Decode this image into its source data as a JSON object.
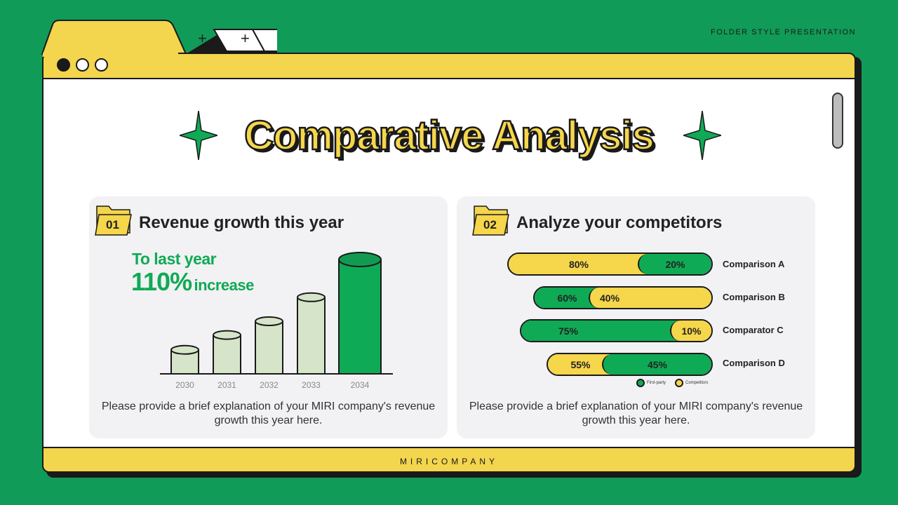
{
  "header_label": "FOLDER STYLE PRESENTATION",
  "tabs": [
    {
      "icon": "plus-icon",
      "label": "+"
    },
    {
      "icon": "plus-icon",
      "label": "+"
    }
  ],
  "window_controls": [
    "close",
    "minimize",
    "maximize"
  ],
  "title": "Comparative Analysis",
  "footer": "MIRICOMPANY",
  "colors": {
    "background": "#119b58",
    "yellow": "#f3d54e",
    "green": "#0faa55",
    "card": "#f2f1f3"
  },
  "card1": {
    "number": "01",
    "title": "Revenue growth this year",
    "highlight_line1": "To last year",
    "highlight_value": "110%",
    "highlight_suffix": "increase",
    "description": "Please provide a brief explanation of your MIRI company's revenue growth this year here."
  },
  "card2": {
    "number": "02",
    "title": "Analyze your competitors",
    "description": "Please provide a brief explanation of your MIRI company's revenue growth this year here."
  },
  "chart_data": [
    {
      "type": "bar",
      "categories": [
        "2030",
        "2031",
        "2032",
        "2033",
        "2034"
      ],
      "values": [
        21,
        34,
        46,
        67,
        100
      ],
      "highlight": "2034",
      "xlabel": "",
      "ylabel": "",
      "grid": false
    },
    {
      "type": "bar",
      "orientation": "horizontal-stacked",
      "categories": [
        "Comparison A",
        "Comparison B",
        "Comparator C",
        "Comparison D"
      ],
      "series": [
        {
          "name": "First-party",
          "color": "#0faa55",
          "values": [
            20,
            60,
            75,
            45
          ],
          "labels": [
            "20%",
            "60%",
            "75%",
            "45%"
          ]
        },
        {
          "name": "Competitors",
          "color": "#f6d64a",
          "values": [
            80,
            40,
            10,
            55
          ],
          "labels": [
            "80%",
            "40%",
            "10%",
            "55%"
          ]
        }
      ],
      "legend": "bottom"
    }
  ]
}
